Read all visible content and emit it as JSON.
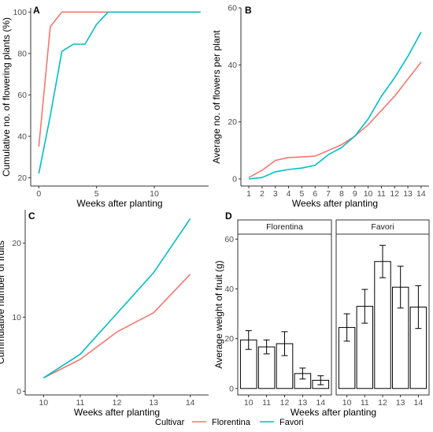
{
  "colors": {
    "florentina": "#F8766D",
    "favori": "#00BFC4"
  },
  "legend": {
    "title": "Cultivar",
    "items": [
      "Florentina",
      "Favori"
    ]
  },
  "chart_data": [
    {
      "panel": "A",
      "type": "line",
      "xlabel": "Weeks after planting",
      "ylabel": "Cumulative no. of flowering plants (%)",
      "xlim": [
        -0.7,
        14.7
      ],
      "ylim": [
        16,
        102
      ],
      "xticks": [
        0,
        5,
        10
      ],
      "yticks": [
        20,
        40,
        60,
        80,
        100
      ],
      "series": [
        {
          "name": "Florentina",
          "color_key": "florentina",
          "x": [
            0,
            1,
            2,
            3,
            4,
            5,
            6
          ],
          "y": [
            35,
            93,
            100,
            100,
            100,
            100,
            100
          ]
        },
        {
          "name": "Favori",
          "color_key": "favori",
          "x": [
            0,
            1,
            2,
            3,
            4,
            5,
            6,
            7,
            8,
            9,
            10,
            11,
            12,
            13,
            14
          ],
          "y": [
            22,
            50,
            81,
            84.5,
            84.5,
            94,
            100,
            100,
            100,
            100,
            100,
            100,
            100,
            100,
            100
          ]
        }
      ]
    },
    {
      "panel": "B",
      "type": "line",
      "xlabel": "Weeks after planting",
      "ylabel": "Average no. of flowers per plant",
      "xlim": [
        0.4,
        14.6
      ],
      "ylim": [
        -2.5,
        60
      ],
      "xticks": [
        1,
        2,
        3,
        4,
        5,
        6,
        7,
        8,
        9,
        10,
        11,
        12,
        13,
        14
      ],
      "yticks": [
        0,
        20,
        40,
        60
      ],
      "series": [
        {
          "name": "Florentina",
          "color_key": "florentina",
          "x": [
            1,
            2,
            3,
            4,
            5,
            6,
            7,
            8,
            9,
            10,
            11,
            12,
            13,
            14
          ],
          "y": [
            0.5,
            3,
            6.5,
            7.5,
            7.7,
            8,
            10,
            12,
            15,
            19,
            24,
            29,
            35,
            41
          ]
        },
        {
          "name": "Favori",
          "color_key": "favori",
          "x": [
            1,
            2,
            3,
            4,
            5,
            6,
            7,
            8,
            9,
            10,
            11,
            12,
            13,
            14
          ],
          "y": [
            0,
            0.5,
            2.5,
            3.3,
            3.8,
            4.8,
            8.5,
            11,
            15,
            21,
            29,
            35.5,
            43,
            51.5
          ]
        }
      ]
    },
    {
      "panel": "C",
      "type": "line",
      "xlabel": "Weeks after planting",
      "ylabel": "Cummulative number of fruits",
      "xlim": [
        9.5,
        14.5
      ],
      "ylim": [
        -0.5,
        24.5
      ],
      "xticks": [
        10,
        11,
        12,
        13,
        14
      ],
      "yticks": [
        0,
        10,
        20
      ],
      "series": [
        {
          "name": "Florentina",
          "color_key": "florentina",
          "x": [
            10,
            11,
            12,
            13,
            14
          ],
          "y": [
            1.8,
            4.3,
            8,
            10.6,
            15.8
          ]
        },
        {
          "name": "Favori",
          "color_key": "favori",
          "x": [
            10,
            11,
            12,
            13,
            14
          ],
          "y": [
            1.8,
            5,
            10.5,
            16,
            23.3
          ]
        }
      ]
    },
    {
      "panel": "D",
      "type": "bar",
      "xlabel": "Weeks after planting",
      "ylabel": "Average weight of fruit (g)",
      "ylim": [
        -2.6,
        62
      ],
      "yticks": [
        0,
        20,
        40,
        60
      ],
      "categories": [
        "10",
        "11",
        "12",
        "13",
        "14"
      ],
      "facets": [
        {
          "name": "Florentina",
          "values": [
            19.5,
            16.7,
            18,
            6,
            3.3
          ],
          "err_low": [
            15.7,
            13.9,
            13.2,
            3.8,
            1.5
          ],
          "err_high": [
            23.2,
            19.5,
            22.8,
            8.2,
            5.1
          ]
        },
        {
          "name": "Favori",
          "values": [
            24.5,
            33,
            51,
            40.7,
            32.7
          ],
          "err_low": [
            19,
            26.2,
            44.5,
            32.3,
            24.1
          ],
          "err_high": [
            30,
            39.8,
            57.5,
            49.1,
            41.3
          ]
        }
      ]
    }
  ]
}
